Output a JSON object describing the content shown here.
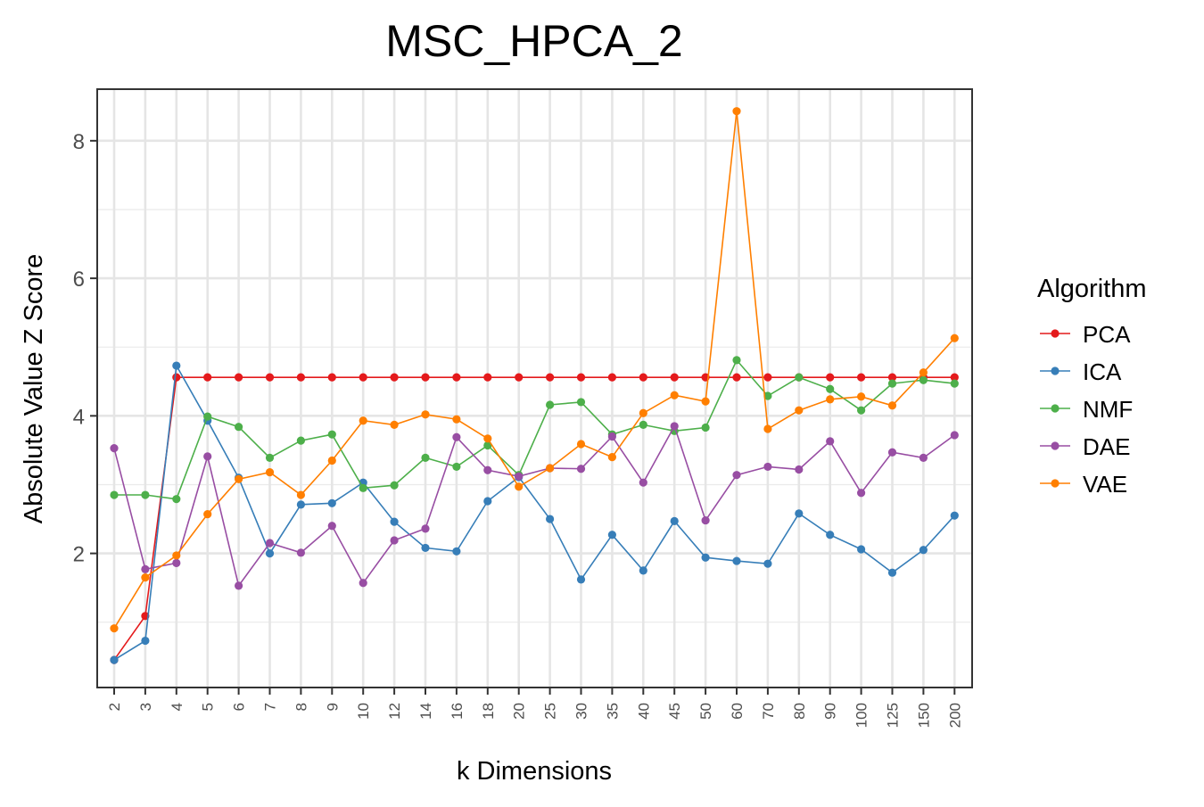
{
  "chart_data": {
    "type": "line",
    "title": "MSC_HPCA_2",
    "xlabel": "k Dimensions",
    "ylabel": "Absolute Value Z Score",
    "ylim": [
      0.05,
      8.75
    ],
    "yticks": [
      2,
      4,
      6,
      8
    ],
    "grid": true,
    "legend_placement": "right",
    "legend_title": "Algorithm",
    "categories": [
      "2",
      "3",
      "4",
      "5",
      "6",
      "7",
      "8",
      "9",
      "10",
      "12",
      "14",
      "16",
      "18",
      "20",
      "25",
      "30",
      "35",
      "40",
      "45",
      "50",
      "60",
      "70",
      "80",
      "90",
      "100",
      "125",
      "150",
      "200"
    ],
    "series": [
      {
        "name": "PCA",
        "color": "#e41a1c",
        "values": [
          0.45,
          1.09,
          4.56,
          4.56,
          4.56,
          4.56,
          4.56,
          4.56,
          4.56,
          4.56,
          4.56,
          4.56,
          4.56,
          4.56,
          4.56,
          4.56,
          4.56,
          4.56,
          4.56,
          4.56,
          4.56,
          4.56,
          4.56,
          4.56,
          4.56,
          4.56,
          4.56,
          4.56
        ]
      },
      {
        "name": "ICA",
        "color": "#377eb8",
        "values": [
          0.45,
          0.73,
          4.73,
          3.93,
          3.1,
          2.0,
          2.71,
          2.73,
          3.03,
          2.46,
          2.08,
          2.03,
          2.76,
          3.11,
          2.5,
          1.62,
          2.27,
          1.75,
          2.47,
          1.94,
          1.89,
          1.85,
          2.58,
          2.27,
          2.06,
          1.72,
          2.05,
          2.55
        ]
      },
      {
        "name": "NMF",
        "color": "#4daf4a",
        "values": [
          2.85,
          2.85,
          2.79,
          3.99,
          3.84,
          3.39,
          3.64,
          3.73,
          2.95,
          2.99,
          3.39,
          3.26,
          3.57,
          3.14,
          4.16,
          4.2,
          3.73,
          3.87,
          3.78,
          3.83,
          4.81,
          4.29,
          4.56,
          4.39,
          4.08,
          4.47,
          4.52,
          4.47
        ]
      },
      {
        "name": "DAE",
        "color": "#984ea3",
        "values": [
          3.53,
          1.77,
          1.86,
          3.41,
          1.53,
          2.15,
          2.01,
          2.4,
          1.57,
          2.19,
          2.36,
          3.69,
          3.21,
          3.12,
          3.24,
          3.23,
          3.7,
          3.03,
          3.85,
          2.48,
          3.14,
          3.26,
          3.22,
          3.63,
          2.88,
          3.47,
          3.39,
          3.72
        ]
      },
      {
        "name": "VAE",
        "color": "#ff7f00",
        "values": [
          0.91,
          1.65,
          1.97,
          2.57,
          3.08,
          3.18,
          2.85,
          3.35,
          3.93,
          3.87,
          4.02,
          3.95,
          3.67,
          2.97,
          3.24,
          3.59,
          3.4,
          4.04,
          4.3,
          4.21,
          8.43,
          3.81,
          4.08,
          4.24,
          4.28,
          4.15,
          4.63,
          5.13
        ]
      }
    ]
  }
}
